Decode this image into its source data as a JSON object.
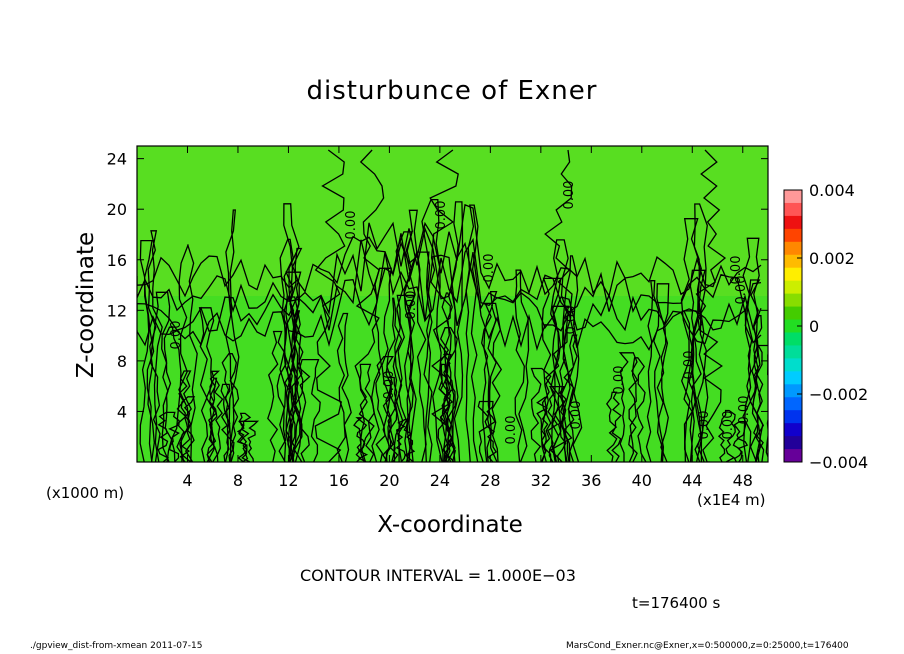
{
  "chart_data": {
    "type": "heatmap",
    "title": "disturbunce of Exner",
    "xlabel": "X-coordinate",
    "ylabel": "Z-coordinate",
    "x_unit_left": "(x1000 m)",
    "x_unit_right": "(x1E4 m)",
    "xlim": [
      0,
      50
    ],
    "ylim": [
      0,
      25
    ],
    "xticks": [
      4,
      8,
      12,
      16,
      20,
      24,
      28,
      32,
      36,
      40,
      44,
      48
    ],
    "yticks": [
      4,
      8,
      12,
      16,
      20,
      24
    ],
    "colorbar": {
      "ticks": [
        0.004,
        0.002,
        0,
        -0.002,
        -0.004
      ],
      "tick_labels": [
        "0.004",
        "0.002",
        "0",
        "−0.002",
        "−0.004"
      ],
      "range": [
        -0.004,
        0.004
      ],
      "colors": [
        "#ff9999",
        "#ff5555",
        "#ee1111",
        "#ff4400",
        "#ff8800",
        "#ffbb00",
        "#ffee00",
        "#ccee00",
        "#88dd00",
        "#44cc00",
        "#22dd22",
        "#00dd66",
        "#00dd99",
        "#00ddcc",
        "#00ccff",
        "#0099ff",
        "#0066ff",
        "#0033ee",
        "#1100cc",
        "#220099",
        "#660099"
      ]
    },
    "contour_labels": [
      "0.00"
    ],
    "background_level": 0
  },
  "annotations": {
    "contour_interval": "CONTOUR INTERVAL = 1.000E−03",
    "time": "t=176400 s"
  },
  "footer": {
    "left": "./gpview_dist-from-xmean  2011-07-15",
    "right": "MarsCond_Exner.nc@Exner,x=0:500000,z=0:25000,t=176400"
  },
  "colors": {
    "field": "#44dd22",
    "field_light": "#66e022",
    "contour": "#000000"
  }
}
